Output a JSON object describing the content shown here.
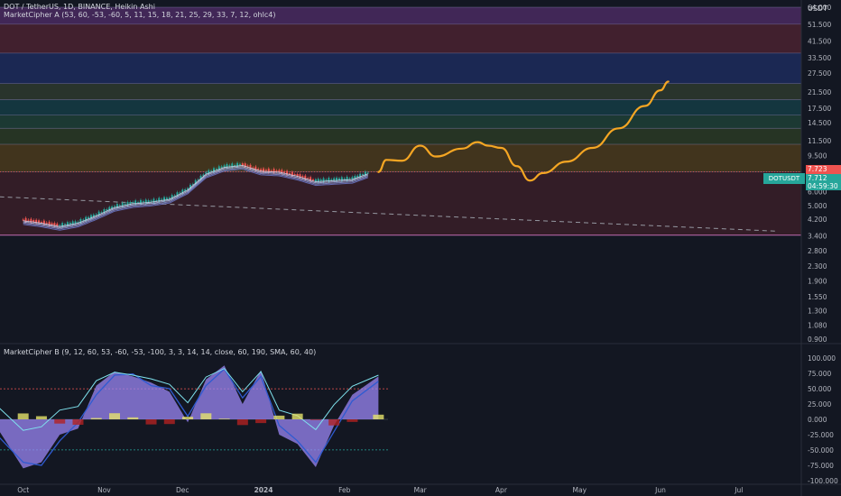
{
  "header": {
    "symbol_line": "DOT / TetherUS, 1D, BINANCE, Heikin Ashi",
    "indicator_a": "MarketCipher A (53, 60, -53, -60, 5, 11, 15, 18, 21, 25, 29, 33, 7, 12, ohlc4)",
    "indicator_b": "MarketCipher B (9, 12, 60, 53, -60, -53, -100, 3, 3, 14, 14, close, 60, 190, SMA, 60, 40)"
  },
  "price_axis": {
    "currency": "USDT",
    "scale": "log",
    "ticks": [
      "64.000",
      "51.500",
      "41.500",
      "33.500",
      "27.500",
      "21.500",
      "17.500",
      "14.500",
      "11.500",
      "9.500",
      "7.723",
      "7.712",
      "6.000",
      "5.000",
      "4.200",
      "3.400",
      "2.800",
      "2.300",
      "1.900",
      "1.550",
      "1.300",
      "1.080",
      "0.900"
    ],
    "last_price_tag": {
      "symbol": "DOTUSDT",
      "price": "7.712",
      "countdown": "04:59:30",
      "line_price": "7.723"
    }
  },
  "osc_axis": {
    "ticks": [
      "100.000",
      "75.000",
      "50.000",
      "25.000",
      "0.000",
      "-25.000",
      "-50.000",
      "-75.000",
      "-100.000"
    ]
  },
  "time_axis": {
    "ticks": [
      "Oct",
      "Nov",
      "Dec",
      "2024",
      "Feb",
      "Mar",
      "Apr",
      "May",
      "Jun",
      "Jul"
    ],
    "bold": [
      "2024"
    ]
  },
  "colors": {
    "background": "#131722",
    "projection": "#f5a623",
    "wt1": "#9b87f5",
    "wt2": "#2f5bd1",
    "up": "#26a69a",
    "down": "#ef5350",
    "last_price": "#26a69a",
    "price_line": "#ef5350",
    "trend_line": "#9598a1"
  },
  "chart_data": {
    "type": "line",
    "price_scale": "log",
    "zones": [
      {
        "from": 51.5,
        "to": 64.0,
        "color": "#4a2a60"
      },
      {
        "from": 35.5,
        "to": 51.5,
        "color": "#4a2230"
      },
      {
        "from": 24.0,
        "to": 35.5,
        "color": "#1d2b5c"
      },
      {
        "from": 19.5,
        "to": 24.0,
        "color": "#2e3a2e"
      },
      {
        "from": 16.0,
        "to": 19.5,
        "color": "#153c44"
      },
      {
        "from": 13.5,
        "to": 16.0,
        "color": "#1e4036"
      },
      {
        "from": 11.0,
        "to": 13.5,
        "color": "#2a3a24"
      },
      {
        "from": 7.72,
        "to": 11.0,
        "color": "#4a3a1c"
      },
      {
        "from": 3.42,
        "to": 7.72,
        "color": "#3a1f28"
      }
    ],
    "heikin_ashi_candles": [
      [
        "2023-10-01",
        4.18
      ],
      [
        "2023-10-08",
        4.05
      ],
      [
        "2023-10-15",
        3.88
      ],
      [
        "2023-10-22",
        4.05
      ],
      [
        "2023-10-29",
        4.45
      ],
      [
        "2023-11-05",
        4.95
      ],
      [
        "2023-11-12",
        5.2
      ],
      [
        "2023-11-19",
        5.3
      ],
      [
        "2023-11-26",
        5.5
      ],
      [
        "2023-12-03",
        6.2
      ],
      [
        "2023-12-10",
        7.6
      ],
      [
        "2023-12-17",
        8.3
      ],
      [
        "2023-12-24",
        8.5
      ],
      [
        "2023-12-31",
        7.9
      ],
      [
        "2024-01-07",
        7.8
      ],
      [
        "2024-01-14",
        7.4
      ],
      [
        "2024-01-21",
        6.9
      ],
      [
        "2024-01-28",
        7.0
      ],
      [
        "2024-02-04",
        7.1
      ],
      [
        "2024-02-11",
        7.72
      ]
    ],
    "projection": [
      [
        "2024-02-14",
        7.7
      ],
      [
        "2024-02-17",
        9.0
      ],
      [
        "2024-02-23",
        8.9
      ],
      [
        "2024-03-01",
        10.8
      ],
      [
        "2024-03-07",
        9.4
      ],
      [
        "2024-03-17",
        10.4
      ],
      [
        "2024-03-23",
        11.3
      ],
      [
        "2024-03-27",
        10.8
      ],
      [
        "2024-04-01",
        10.5
      ],
      [
        "2024-04-07",
        8.3
      ],
      [
        "2024-04-12",
        6.9
      ],
      [
        "2024-04-17",
        7.6
      ],
      [
        "2024-04-26",
        8.8
      ],
      [
        "2024-05-06",
        10.5
      ],
      [
        "2024-05-16",
        13.5
      ],
      [
        "2024-05-26",
        18.0
      ],
      [
        "2024-06-01",
        22.0
      ],
      [
        "2024-06-04",
        24.6
      ]
    ],
    "trend_line": [
      [
        "2023-09-22",
        5.6
      ],
      [
        "2024-07-16",
        3.6
      ]
    ],
    "oscillator": {
      "name": "MarketCipher B",
      "ylim": [
        -100,
        100
      ],
      "wt1": [
        [
          "2023-09-22",
          -20
        ],
        [
          "2023-10-01",
          -80
        ],
        [
          "2023-10-08",
          -70
        ],
        [
          "2023-10-15",
          -25
        ],
        [
          "2023-10-22",
          -15
        ],
        [
          "2023-10-29",
          55
        ],
        [
          "2023-11-05",
          78
        ],
        [
          "2023-11-12",
          70
        ],
        [
          "2023-11-19",
          60
        ],
        [
          "2023-11-26",
          45
        ],
        [
          "2023-12-03",
          -5
        ],
        [
          "2023-12-10",
          65
        ],
        [
          "2023-12-17",
          88
        ],
        [
          "2023-12-24",
          25
        ],
        [
          "2023-12-31",
          80
        ],
        [
          "2024-01-07",
          -25
        ],
        [
          "2024-01-14",
          -40
        ],
        [
          "2024-01-21",
          -78
        ],
        [
          "2024-01-28",
          -10
        ],
        [
          "2024-02-04",
          40
        ],
        [
          "2024-02-14",
          70
        ]
      ],
      "wt2": [
        [
          "2023-09-22",
          -30
        ],
        [
          "2023-10-01",
          -70
        ],
        [
          "2023-10-08",
          -75
        ],
        [
          "2023-10-15",
          -35
        ],
        [
          "2023-10-22",
          -5
        ],
        [
          "2023-10-29",
          40
        ],
        [
          "2023-11-05",
          72
        ],
        [
          "2023-11-12",
          74
        ],
        [
          "2023-11-19",
          55
        ],
        [
          "2023-11-26",
          50
        ],
        [
          "2023-12-03",
          5
        ],
        [
          "2023-12-10",
          55
        ],
        [
          "2023-12-17",
          82
        ],
        [
          "2023-12-24",
          35
        ],
        [
          "2023-12-31",
          70
        ],
        [
          "2024-01-07",
          -10
        ],
        [
          "2024-01-14",
          -35
        ],
        [
          "2024-01-21",
          -70
        ],
        [
          "2024-01-28",
          -20
        ],
        [
          "2024-02-04",
          30
        ],
        [
          "2024-02-14",
          62
        ]
      ]
    }
  }
}
